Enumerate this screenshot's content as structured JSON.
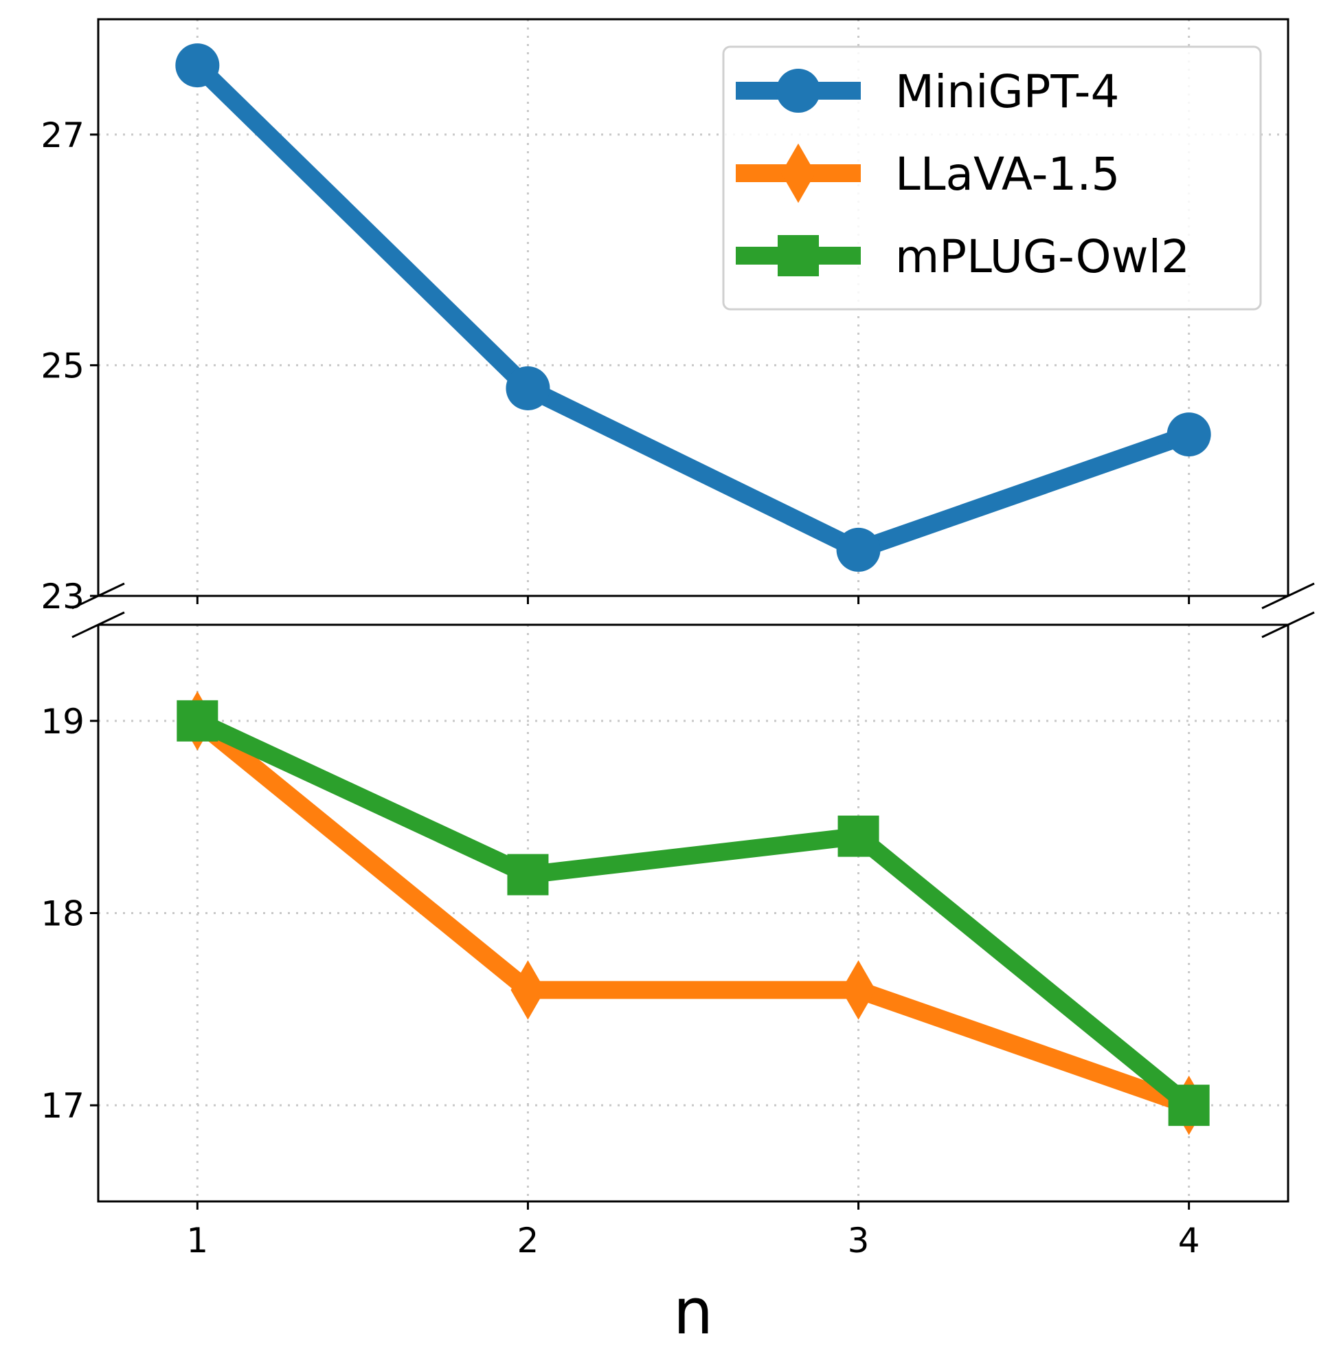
{
  "chart_data": {
    "type": "line",
    "layout": "broken-y-axis",
    "xlabel": "n",
    "ylabel": "",
    "x": [
      1,
      2,
      3,
      4
    ],
    "xlim": [
      0.7,
      4.3
    ],
    "x_ticks": [
      "1",
      "2",
      "3",
      "4"
    ],
    "panels": [
      {
        "id": "upper",
        "ylim": [
          23,
          28
        ],
        "y_ticks": [
          23,
          25,
          27
        ],
        "series": [
          "MiniGPT-4"
        ]
      },
      {
        "id": "lower",
        "ylim": [
          16.5,
          19.5
        ],
        "y_ticks": [
          17,
          18,
          19
        ],
        "series": [
          "LLaVA-1.5",
          "mPLUG-Owl2"
        ]
      }
    ],
    "series": [
      {
        "name": "MiniGPT-4",
        "values": [
          27.6,
          24.8,
          23.4,
          24.4
        ],
        "color": "#1f77b4",
        "marker": "circle"
      },
      {
        "name": "LLaVA-1.5",
        "values": [
          19.0,
          17.6,
          17.6,
          17.0
        ],
        "color": "#ff7f0e",
        "marker": "diamond"
      },
      {
        "name": "mPLUG-Owl2",
        "values": [
          19.0,
          18.2,
          18.4,
          17.0
        ],
        "color": "#2ca02c",
        "marker": "square"
      }
    ],
    "grid": true,
    "legend_position": "top-right"
  }
}
